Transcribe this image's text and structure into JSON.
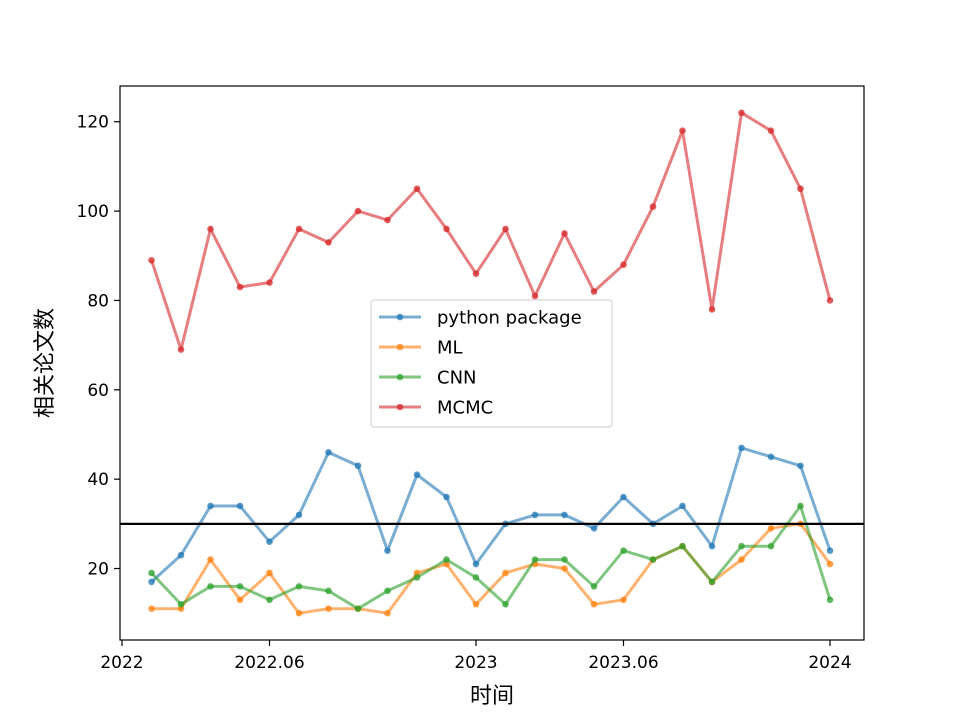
{
  "chart_data": {
    "type": "line",
    "title": "",
    "xlabel": "时间",
    "ylabel": "相关论文数",
    "x": [
      "2022.02",
      "2022.03",
      "2022.04",
      "2022.05",
      "2022.06",
      "2022.07",
      "2022.08",
      "2022.09",
      "2022.10",
      "2022.11",
      "2022.12",
      "2023.01",
      "2023.02",
      "2023.03",
      "2023.04",
      "2023.05",
      "2023.06",
      "2023.07",
      "2023.08",
      "2023.09",
      "2023.10",
      "2023.11",
      "2023.12",
      "2024.01"
    ],
    "x_ticks": [
      "2022",
      "2022.06",
      "2023",
      "2023.06",
      "2024"
    ],
    "y_ticks": [
      "20",
      "40",
      "60",
      "80",
      "100",
      "120"
    ],
    "ylim": [
      4,
      128
    ],
    "reference_line": 30,
    "legend_position": "center",
    "grid": false,
    "series": [
      {
        "name": "python package",
        "color": "#1f77b4",
        "values": [
          17,
          23,
          34,
          34,
          26,
          32,
          46,
          43,
          24,
          41,
          36,
          21,
          30,
          32,
          32,
          29,
          36,
          30,
          34,
          25,
          47,
          45,
          43,
          24
        ]
      },
      {
        "name": "ML",
        "color": "#ff7f0e",
        "values": [
          11,
          11,
          22,
          13,
          19,
          10,
          11,
          11,
          10,
          19,
          21,
          12,
          19,
          21,
          20,
          12,
          13,
          22,
          25,
          17,
          22,
          29,
          30,
          21
        ]
      },
      {
        "name": "CNN",
        "color": "#2ca02c",
        "values": [
          19,
          12,
          16,
          16,
          13,
          16,
          15,
          11,
          15,
          18,
          22,
          18,
          12,
          22,
          22,
          16,
          24,
          22,
          25,
          17,
          25,
          25,
          34,
          13
        ]
      },
      {
        "name": "MCMC",
        "color": "#d62728",
        "values": [
          89,
          69,
          96,
          83,
          84,
          96,
          93,
          100,
          98,
          105,
          96,
          86,
          96,
          81,
          95,
          82,
          88,
          101,
          118,
          78,
          122,
          118,
          105,
          80
        ]
      }
    ]
  }
}
